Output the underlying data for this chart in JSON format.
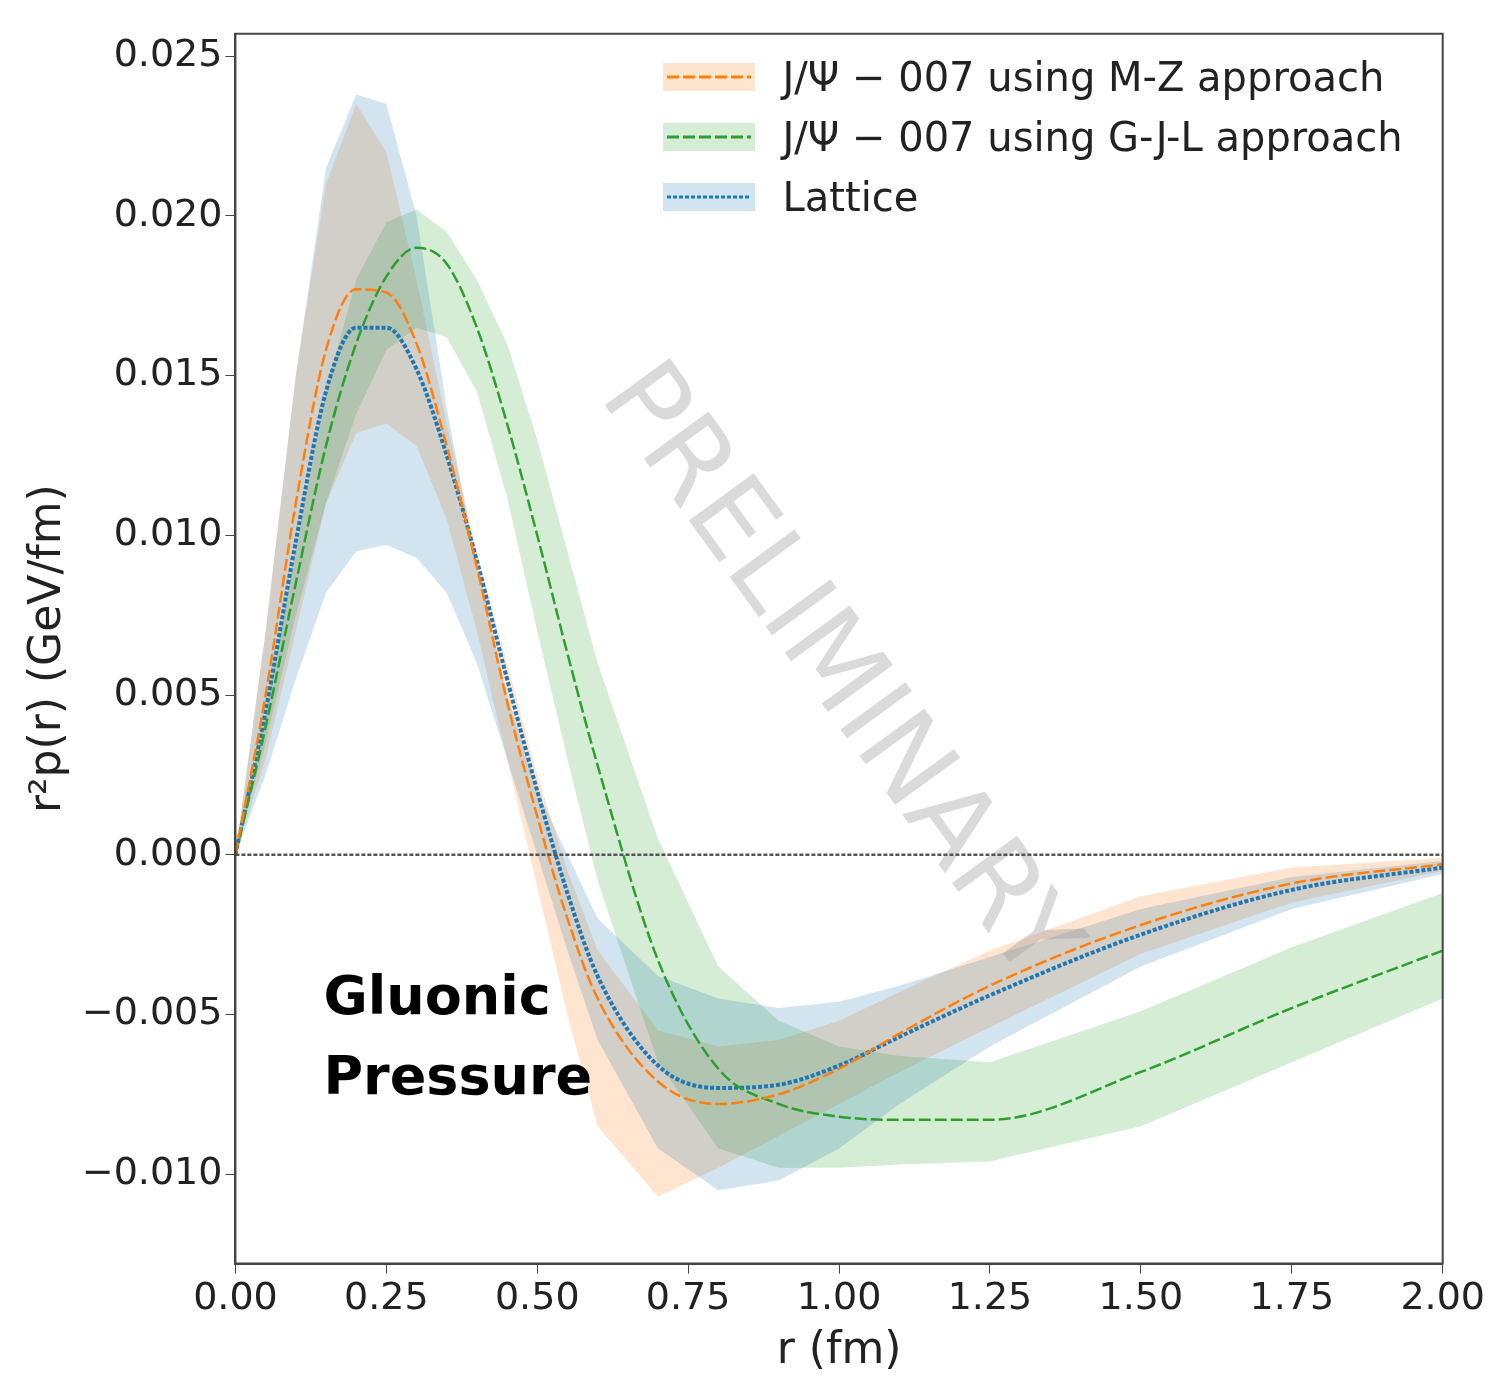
{
  "chart_data": {
    "type": "line",
    "xlabel": "r (fm)",
    "ylabel": "r²p(r) (GeV/fm)",
    "xlim": [
      0,
      2
    ],
    "xticks": [
      {
        "value": 0,
        "label": "0.00"
      },
      {
        "value": 0.25,
        "label": "0.25"
      },
      {
        "value": 0.5,
        "label": "0.50"
      },
      {
        "value": 0.75,
        "label": "0.75"
      },
      {
        "value": 1,
        "label": "1.00"
      },
      {
        "value": 1.25,
        "label": "1.25"
      },
      {
        "value": 1.5,
        "label": "1.50"
      },
      {
        "value": 1.75,
        "label": "1.75"
      },
      {
        "value": 2,
        "label": "2.00"
      }
    ],
    "ylim": [
      -0.0128,
      0.0257
    ],
    "yticks": [
      {
        "value": -0.01,
        "label": "−0.010"
      },
      {
        "value": -0.005,
        "label": "−0.005"
      },
      {
        "value": 0,
        "label": "0.000"
      },
      {
        "value": 0.005,
        "label": "0.005"
      },
      {
        "value": 0.01,
        "label": "0.010"
      },
      {
        "value": 0.015,
        "label": "0.015"
      },
      {
        "value": 0.02,
        "label": "0.020"
      },
      {
        "value": 0.025,
        "label": "0.025"
      }
    ],
    "x": [
      0,
      0.05,
      0.1,
      0.15,
      0.2,
      0.25,
      0.3,
      0.35,
      0.4,
      0.45,
      0.5,
      0.55,
      0.6,
      0.7,
      0.8,
      0.9,
      1.0,
      1.1,
      1.25,
      1.5,
      1.75,
      2.0
    ],
    "legend": "top right",
    "grid": false,
    "marker": "none",
    "series": [
      {
        "name": "J/Ψ − 007 using M-Z approach",
        "color": "#ff7f0e",
        "line_style": "dashed",
        "values": [
          0,
          0.005,
          0.011,
          0.0158,
          0.0177,
          0.0176,
          0.016,
          0.0128,
          0.009,
          0.0048,
          0.0012,
          -0.002,
          -0.0045,
          -0.0071,
          -0.0078,
          -0.0075,
          -0.0067,
          -0.0056,
          -0.0041,
          -0.0022,
          -0.0009,
          -0.0003
        ],
        "upper": [
          0,
          0.007,
          0.015,
          0.021,
          0.0235,
          0.022,
          0.018,
          0.0135,
          0.0095,
          0.006,
          0.0025,
          -0.0005,
          -0.003,
          -0.0055,
          -0.006,
          -0.0058,
          -0.0052,
          -0.0043,
          -0.003,
          -0.0013,
          -0.0004,
          -0.0001
        ],
        "lower": [
          0,
          0.003,
          0.007,
          0.011,
          0.0132,
          0.0135,
          0.0128,
          0.0105,
          0.007,
          0.003,
          -0.001,
          -0.005,
          -0.0085,
          -0.0107,
          -0.0098,
          -0.0088,
          -0.0078,
          -0.0068,
          -0.0054,
          -0.0031,
          -0.0015,
          -0.0005
        ]
      },
      {
        "name": "J/Ψ − 007 using G-J-L approach",
        "color": "#2ca02c",
        "line_style": "dashed",
        "values": [
          0,
          0.004,
          0.0085,
          0.0128,
          0.016,
          0.0181,
          0.019,
          0.0185,
          0.0165,
          0.0135,
          0.01,
          0.0063,
          0.0028,
          -0.0033,
          -0.0067,
          -0.0078,
          -0.0082,
          -0.0083,
          -0.0083,
          -0.0068,
          -0.0048,
          -0.003
        ],
        "upper": [
          0,
          0.0045,
          0.0095,
          0.0145,
          0.018,
          0.0198,
          0.0202,
          0.0195,
          0.018,
          0.016,
          0.013,
          0.0095,
          0.006,
          0.0005,
          -0.0035,
          -0.0052,
          -0.006,
          -0.0063,
          -0.0065,
          -0.0049,
          -0.0029,
          -0.0012
        ],
        "lower": [
          0,
          0.0035,
          0.0075,
          0.011,
          0.0138,
          0.0158,
          0.0165,
          0.0162,
          0.0145,
          0.0112,
          0.007,
          0.003,
          -0.0008,
          -0.0065,
          -0.0092,
          -0.0098,
          -0.0098,
          -0.0097,
          -0.0096,
          -0.0085,
          -0.0065,
          -0.0045
        ]
      },
      {
        "name": "Lattice",
        "color": "#1f77b4",
        "line_style": "dotted",
        "values": [
          0,
          0.0045,
          0.0098,
          0.0145,
          0.0165,
          0.0165,
          0.0152,
          0.0125,
          0.0092,
          0.0055,
          0.002,
          -0.0012,
          -0.0038,
          -0.0066,
          -0.0073,
          -0.0072,
          -0.0066,
          -0.0057,
          -0.0044,
          -0.0025,
          -0.0011,
          -0.0004
        ],
        "upper": [
          0,
          0.007,
          0.015,
          0.0215,
          0.0238,
          0.0235,
          0.02,
          0.014,
          0.009,
          0.005,
          0.002,
          0,
          -0.002,
          -0.0038,
          -0.0045,
          -0.0048,
          -0.0046,
          -0.0041,
          -0.0032,
          -0.0017,
          -0.0007,
          -0.0002
        ],
        "lower": [
          0,
          0.0025,
          0.0055,
          0.0082,
          0.0095,
          0.0097,
          0.0093,
          0.0082,
          0.006,
          0.003,
          0,
          -0.003,
          -0.0058,
          -0.0092,
          -0.0105,
          -0.0102,
          -0.0092,
          -0.0078,
          -0.006,
          -0.0035,
          -0.0017,
          -0.0006
        ]
      }
    ],
    "ref_lines": [
      {
        "axis": "y",
        "value": 0,
        "color": "#555555",
        "line_style": "dotted"
      }
    ],
    "annotations": [
      "Gluonic Pressure",
      "PRELIMINARY"
    ]
  }
}
